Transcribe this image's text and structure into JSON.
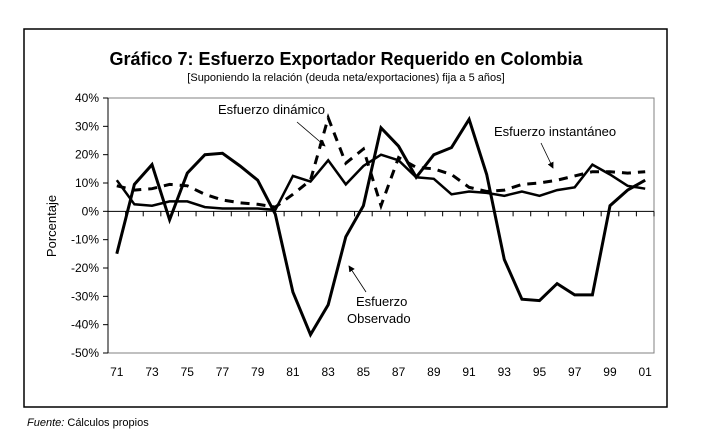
{
  "chart_data": {
    "type": "line",
    "title": "Gráfico 7: Esfuerzo Exportador Requerido en Colombia",
    "subtitle": "[Suponiendo la relación (deuda neta/exportaciones) fija a 5 años]",
    "xlabel": "",
    "ylabel": "Porcentaje",
    "ylim": [
      -50,
      40
    ],
    "yticks": [
      40,
      30,
      20,
      10,
      0,
      -10,
      -20,
      -30,
      -40,
      -50
    ],
    "ytick_labels": [
      "40%",
      "30%",
      "20%",
      "10%",
      "0%",
      "-10%",
      "-20%",
      "-30%",
      "-40%",
      "-50%"
    ],
    "x": [
      "71",
      "72",
      "73",
      "74",
      "75",
      "76",
      "77",
      "78",
      "79",
      "80",
      "81",
      "82",
      "83",
      "84",
      "85",
      "86",
      "87",
      "88",
      "89",
      "90",
      "91",
      "92",
      "93",
      "94",
      "95",
      "96",
      "97",
      "98",
      "99",
      "00",
      "01"
    ],
    "xtick_labels": [
      "71",
      "73",
      "75",
      "77",
      "79",
      "81",
      "83",
      "85",
      "87",
      "89",
      "91",
      "93",
      "95",
      "97",
      "99",
      "01"
    ],
    "grid": false,
    "legend": "none",
    "series": [
      {
        "name": "Esfuerzo Observado",
        "style": "solid-thick",
        "values": [
          -15,
          9.5,
          16.5,
          -3,
          13.5,
          20,
          20.5,
          16,
          11,
          -1,
          -28.5,
          -43.5,
          -33,
          -9,
          2,
          29.5,
          23,
          12,
          20,
          22.5,
          32.5,
          13,
          -17,
          -31,
          -31.5,
          -25.5,
          -29.5,
          -29.5,
          2,
          7.5,
          11
        ]
      },
      {
        "name": "Esfuerzo dinámico",
        "style": "dashed",
        "values": [
          9,
          7.5,
          8,
          9.5,
          9,
          6,
          4,
          3,
          2.5,
          1.5,
          6,
          11,
          33,
          17,
          22,
          2,
          19,
          15.5,
          15,
          13,
          8.5,
          7,
          7.5,
          9.5,
          10,
          11,
          12.5,
          14,
          14,
          13.5,
          14
        ]
      },
      {
        "name": "Esfuerzo instantáneo",
        "style": "solid",
        "values": [
          11,
          2.5,
          2,
          3.5,
          3.5,
          1.5,
          1,
          1,
          1,
          0.5,
          12.5,
          10.5,
          18,
          9.5,
          16,
          20,
          18,
          12,
          11.5,
          6,
          7,
          6.5,
          5.5,
          7,
          5.5,
          7.5,
          8.5,
          16.5,
          13,
          9,
          8
        ]
      }
    ],
    "annotations": [
      {
        "text": "Esfuerzo dinámico",
        "points_to": "Esfuerzo dinámico"
      },
      {
        "text": "Esfuerzo instantáneo",
        "points_to": "Esfuerzo instantáneo"
      },
      {
        "text": "Esfuerzo Observado",
        "points_to": "Esfuerzo Observado"
      }
    ]
  },
  "source": {
    "label": "Fuente:",
    "text": "Cálculos propios"
  }
}
